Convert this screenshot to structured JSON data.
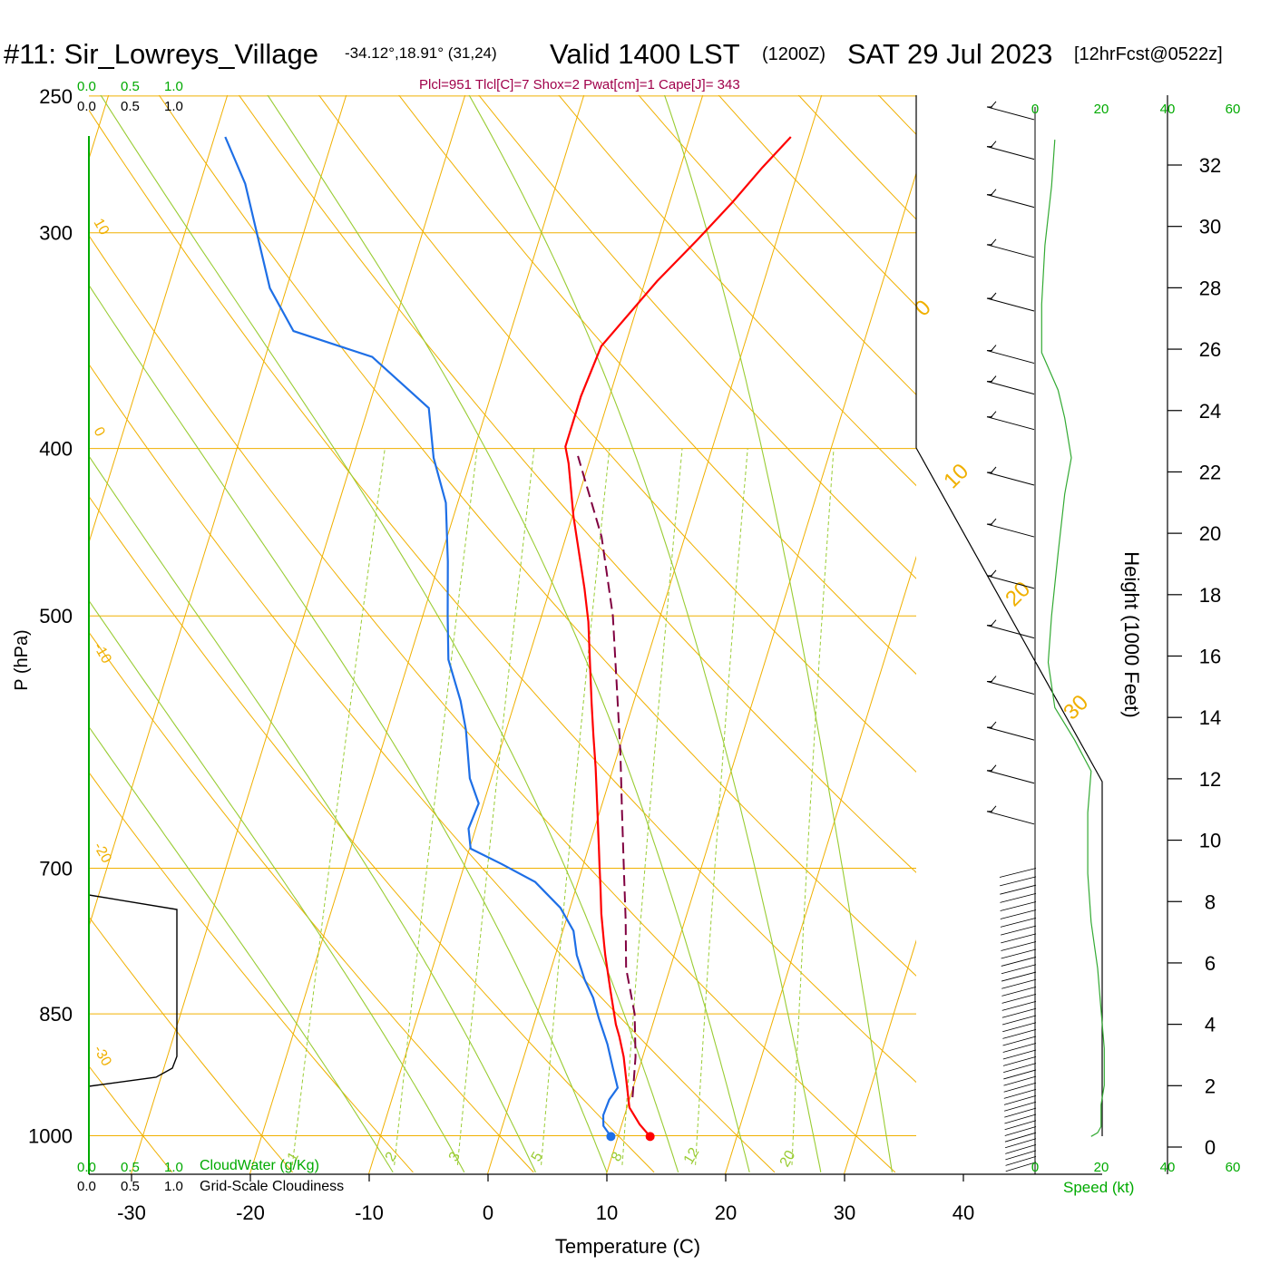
{
  "header": {
    "station": "#11: Sir_Lowreys_Village",
    "coords": "-34.12°,18.91° (31,24)",
    "valid_label": "Valid 1400 LST",
    "utc": "(1200Z)",
    "date": "SAT 29 Jul 2023",
    "forecast": "[12hrFcst@0522z]"
  },
  "indices": "Plcl=951 Tlcl[C]=7 Shox=2 Pwat[cm]=1 Cape[J]= 343",
  "colors": {
    "temperature": "#ff0000",
    "dewpoint": "#1e6fe6",
    "parcel": "#800040",
    "isotherm": "#f0b000",
    "dry_adiabat": "#f0b000",
    "moist_adiabat": "#99cc33",
    "mixing_ratio": "#99cc33",
    "cloud_scale": "#00aa00",
    "speed_profile": "#33aa33",
    "indices_text": "#a0004a"
  },
  "cloud_scale": {
    "top_green": [
      "0.0",
      "0.5",
      "1.0"
    ],
    "top_black": [
      "0.0",
      "0.5",
      "1.0"
    ],
    "bottom_green": [
      "0.0",
      "0.5",
      "1.0"
    ],
    "bottom_black": [
      "0.0",
      "0.5",
      "1.0"
    ],
    "cloudwater_label": "CloudWater (g/Kg)",
    "cloudiness_label": "Grid-Scale Cloudiness"
  },
  "speed_axis": {
    "ticks": [
      "0",
      "20",
      "40",
      "60"
    ],
    "label": "Speed (kt)"
  },
  "chart_data": {
    "type": "line",
    "title": "",
    "xlabel": "Temperature (C)",
    "ylabel": "P (hPa)",
    "y2label": "Height (1000 Feet)",
    "xlim": [
      -30,
      40
    ],
    "ylim": [
      1040,
      250
    ],
    "y_scale": "log-pressure",
    "x_ticks": [
      "-30",
      "-20",
      "-10",
      "0",
      "10",
      "20",
      "30",
      "40"
    ],
    "p_ticks": [
      "250",
      "300",
      "400",
      "500",
      "700",
      "850",
      "1000"
    ],
    "height_ticks": [
      "0",
      "2",
      "4",
      "6",
      "8",
      "10",
      "12",
      "14",
      "16",
      "18",
      "20",
      "22",
      "24",
      "26",
      "28",
      "30",
      "32"
    ],
    "dry_adiabat_labels": [
      "30",
      "20",
      "10",
      "0",
      "-10",
      "-20",
      "-30",
      "0",
      "10",
      "20",
      "30"
    ],
    "mixing_ratio_labels": [
      "1",
      "2",
      "3",
      "5",
      "8",
      "12",
      "20"
    ],
    "series": [
      {
        "key": "temperature",
        "points": [
          [
            12.7,
            1001
          ],
          [
            11.5,
            985
          ],
          [
            10.2,
            963
          ],
          [
            8.4,
            900
          ],
          [
            7.5,
            876
          ],
          [
            6.9,
            862
          ],
          [
            5.6,
            825
          ],
          [
            4.2,
            786
          ],
          [
            3.8,
            774
          ],
          [
            2.8,
            744
          ],
          [
            2.0,
            717
          ],
          [
            1.4,
            698
          ],
          [
            0.8,
            679
          ],
          [
            -0.4,
            643
          ],
          [
            -1.5,
            612
          ],
          [
            -2.5,
            587
          ],
          [
            -3.5,
            562
          ],
          [
            -4.8,
            530
          ],
          [
            -5.9,
            504
          ],
          [
            -7.1,
            482
          ],
          [
            -9.9,
            438
          ],
          [
            -11.7,
            408
          ],
          [
            -12.4,
            399
          ],
          [
            -12.4,
            373
          ],
          [
            -12.0,
            349
          ],
          [
            -9.0,
            320
          ],
          [
            -6.7,
            303
          ],
          [
            -4.7,
            288
          ],
          [
            -3.1,
            275
          ],
          [
            -1.5,
            264
          ]
        ]
      },
      {
        "key": "dewpoint",
        "points": [
          [
            9.4,
            1001
          ],
          [
            8.5,
            987
          ],
          [
            8.2,
            973
          ],
          [
            8.3,
            953
          ],
          [
            8.7,
            938
          ],
          [
            7.8,
            914
          ],
          [
            6.7,
            885
          ],
          [
            5.3,
            855
          ],
          [
            4.3,
            832
          ],
          [
            3.1,
            812
          ],
          [
            1.8,
            786
          ],
          [
            0.9,
            761
          ],
          [
            -0.8,
            738
          ],
          [
            -3.6,
            713
          ],
          [
            -6.9,
            696
          ],
          [
            -9.9,
            682
          ],
          [
            -10.6,
            664
          ],
          [
            -10.4,
            642
          ],
          [
            -11.8,
            621
          ],
          [
            -13.4,
            582
          ],
          [
            -14.6,
            560
          ],
          [
            -16.7,
            530
          ],
          [
            -17.9,
            500
          ],
          [
            -19.3,
            465
          ],
          [
            -21.0,
            430
          ],
          [
            -23.2,
            405
          ],
          [
            -24.9,
            379
          ],
          [
            -31.0,
            354
          ],
          [
            -38.3,
            342
          ],
          [
            -41.4,
            323
          ],
          [
            -46.2,
            281
          ],
          [
            -49.1,
            264
          ]
        ]
      },
      {
        "key": "parcel",
        "dashed": true,
        "points": [
          [
            10.2,
            950
          ],
          [
            9.4,
            900
          ],
          [
            8.2,
            850
          ],
          [
            6.3,
            800
          ],
          [
            5.0,
            750
          ],
          [
            3.5,
            700
          ],
          [
            1.9,
            650
          ],
          [
            0.2,
            600
          ],
          [
            -1.8,
            550
          ],
          [
            -4.0,
            500
          ],
          [
            -7.0,
            450
          ],
          [
            -11.1,
            404
          ]
        ]
      }
    ],
    "wind_profile": {
      "xlim": [
        0,
        60
      ],
      "points": [
        [
          17,
          1001
        ],
        [
          19,
          996
        ],
        [
          20,
          988
        ],
        [
          20,
          960
        ],
        [
          21,
          935
        ],
        [
          21,
          890
        ],
        [
          20,
          845
        ],
        [
          19,
          800
        ],
        [
          17,
          752
        ],
        [
          16,
          705
        ],
        [
          16,
          650
        ],
        [
          17,
          615
        ],
        [
          12,
          590
        ],
        [
          6,
          565
        ],
        [
          4,
          532
        ],
        [
          5,
          500
        ],
        [
          7,
          460
        ],
        [
          9,
          425
        ],
        [
          11,
          405
        ],
        [
          9,
          384
        ],
        [
          7,
          370
        ],
        [
          2,
          352
        ],
        [
          2,
          330
        ],
        [
          3,
          305
        ],
        [
          5,
          282
        ],
        [
          6,
          265
        ]
      ]
    }
  }
}
